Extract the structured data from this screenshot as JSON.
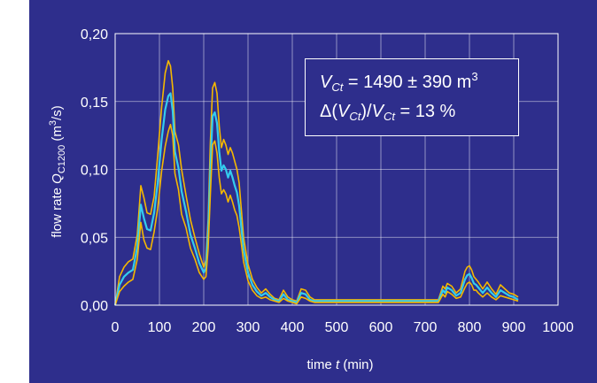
{
  "colors": {
    "background": "#2e2e8c",
    "grid": "#ffffff",
    "upper_bound": "#f5b800",
    "lower_bound": "#f5b800",
    "mean": "#33ccee"
  },
  "chart_data": {
    "type": "line",
    "xlabel": {
      "prefix": "time ",
      "var": "t",
      "unit": " (min)"
    },
    "ylabel": {
      "prefix": "flow rate ",
      "var": "Q",
      "sub": "C1200",
      "unit_pre": " (m",
      "unit_sup": "3",
      "unit_post": "/s)"
    },
    "xlim": [
      0,
      1000
    ],
    "ylim": [
      0,
      0.2
    ],
    "x_ticks": [
      "0",
      "100",
      "200",
      "300",
      "400",
      "500",
      "600",
      "700",
      "800",
      "900",
      "1000"
    ],
    "y_ticks": [
      "0,00",
      "0,05",
      "0,10",
      "0,15",
      "0,20"
    ],
    "grid": true,
    "annotation": {
      "line1": {
        "var": "V",
        "sub": "Ct",
        "text": " = 1490 ± 390 m",
        "sup": "3"
      },
      "line2": {
        "pre": "Δ(",
        "var1": "V",
        "sub1": "Ct",
        "mid": ")/",
        "var2": "V",
        "sub2": "Ct",
        "post": " = 13 %"
      }
    },
    "series": [
      {
        "role": "upper",
        "x": [
          0,
          10,
          20,
          30,
          40,
          50,
          58,
          65,
          72,
          80,
          88,
          96,
          105,
          113,
          120,
          125,
          130,
          135,
          143,
          150,
          160,
          170,
          180,
          190,
          200,
          205,
          210,
          215,
          220,
          225,
          230,
          235,
          240,
          245,
          250,
          255,
          260,
          265,
          270,
          275,
          280,
          285,
          290,
          300,
          310,
          320,
          330,
          340,
          350,
          360,
          370,
          380,
          390,
          400,
          410,
          420,
          430,
          440,
          450,
          500,
          550,
          600,
          650,
          700,
          720,
          730,
          740,
          745,
          750,
          760,
          770,
          780,
          790,
          795,
          800,
          805,
          810,
          815,
          820,
          830,
          840,
          850,
          860,
          870,
          880,
          890,
          900,
          910
        ],
        "y": [
          0,
          0.021,
          0.028,
          0.032,
          0.034,
          0.052,
          0.088,
          0.079,
          0.068,
          0.067,
          0.08,
          0.11,
          0.146,
          0.171,
          0.18,
          0.176,
          0.16,
          0.128,
          0.118,
          0.1,
          0.081,
          0.063,
          0.05,
          0.038,
          0.028,
          0.033,
          0.063,
          0.12,
          0.16,
          0.164,
          0.156,
          0.132,
          0.116,
          0.122,
          0.118,
          0.111,
          0.116,
          0.112,
          0.106,
          0.1,
          0.09,
          0.07,
          0.05,
          0.03,
          0.019,
          0.013,
          0.009,
          0.012,
          0.008,
          0.005,
          0.004,
          0.011,
          0.006,
          0.004,
          0.003,
          0.012,
          0.011,
          0.006,
          0.004,
          0.004,
          0.004,
          0.004,
          0.004,
          0.004,
          0.004,
          0.004,
          0.014,
          0.012,
          0.016,
          0.014,
          0.009,
          0.012,
          0.025,
          0.028,
          0.029,
          0.026,
          0.021,
          0.019,
          0.017,
          0.012,
          0.017,
          0.012,
          0.008,
          0.015,
          0.012,
          0.009,
          0.008,
          0.006
        ]
      },
      {
        "role": "mean",
        "x": [
          0,
          10,
          20,
          30,
          40,
          50,
          58,
          65,
          72,
          80,
          88,
          96,
          105,
          113,
          120,
          125,
          130,
          135,
          143,
          150,
          160,
          170,
          180,
          190,
          200,
          205,
          210,
          215,
          220,
          225,
          230,
          235,
          240,
          245,
          250,
          255,
          260,
          265,
          270,
          275,
          280,
          285,
          290,
          300,
          310,
          320,
          330,
          340,
          350,
          360,
          370,
          380,
          390,
          400,
          410,
          420,
          430,
          440,
          450,
          500,
          550,
          600,
          650,
          700,
          720,
          730,
          740,
          745,
          750,
          760,
          770,
          780,
          790,
          795,
          800,
          805,
          810,
          815,
          820,
          830,
          840,
          850,
          860,
          870,
          880,
          890,
          900,
          910
        ],
        "y": [
          0,
          0.015,
          0.021,
          0.024,
          0.026,
          0.043,
          0.074,
          0.064,
          0.056,
          0.055,
          0.068,
          0.09,
          0.122,
          0.144,
          0.154,
          0.156,
          0.143,
          0.113,
          0.101,
          0.084,
          0.069,
          0.052,
          0.042,
          0.031,
          0.024,
          0.027,
          0.053,
          0.1,
          0.139,
          0.142,
          0.134,
          0.113,
          0.099,
          0.103,
          0.1,
          0.094,
          0.099,
          0.094,
          0.088,
          0.083,
          0.073,
          0.057,
          0.041,
          0.024,
          0.015,
          0.01,
          0.007,
          0.009,
          0.006,
          0.004,
          0.003,
          0.008,
          0.004,
          0.003,
          0.002,
          0.009,
          0.008,
          0.004,
          0.003,
          0.003,
          0.003,
          0.003,
          0.003,
          0.003,
          0.003,
          0.003,
          0.011,
          0.009,
          0.013,
          0.011,
          0.007,
          0.009,
          0.019,
          0.022,
          0.023,
          0.02,
          0.016,
          0.015,
          0.013,
          0.009,
          0.013,
          0.009,
          0.006,
          0.011,
          0.009,
          0.007,
          0.006,
          0.004
        ]
      },
      {
        "role": "lower",
        "x": [
          0,
          10,
          20,
          30,
          40,
          50,
          58,
          65,
          72,
          80,
          88,
          96,
          105,
          113,
          120,
          125,
          130,
          135,
          143,
          150,
          160,
          170,
          180,
          190,
          200,
          205,
          210,
          215,
          220,
          225,
          230,
          235,
          240,
          245,
          250,
          255,
          260,
          265,
          270,
          275,
          280,
          285,
          290,
          300,
          310,
          320,
          330,
          340,
          350,
          360,
          370,
          380,
          390,
          400,
          410,
          420,
          430,
          440,
          450,
          500,
          550,
          600,
          650,
          700,
          720,
          730,
          740,
          745,
          750,
          760,
          770,
          780,
          790,
          795,
          800,
          805,
          810,
          815,
          820,
          830,
          840,
          850,
          860,
          870,
          880,
          890,
          900,
          910
        ],
        "y": [
          0,
          0.01,
          0.014,
          0.017,
          0.019,
          0.034,
          0.061,
          0.048,
          0.042,
          0.041,
          0.054,
          0.071,
          0.099,
          0.117,
          0.128,
          0.133,
          0.125,
          0.097,
          0.085,
          0.067,
          0.057,
          0.042,
          0.034,
          0.024,
          0.019,
          0.021,
          0.042,
          0.082,
          0.118,
          0.121,
          0.112,
          0.094,
          0.082,
          0.085,
          0.082,
          0.076,
          0.081,
          0.076,
          0.07,
          0.066,
          0.057,
          0.045,
          0.032,
          0.018,
          0.011,
          0.007,
          0.005,
          0.006,
          0.004,
          0.003,
          0.002,
          0.005,
          0.003,
          0.002,
          0.001,
          0.006,
          0.005,
          0.003,
          0.002,
          0.002,
          0.002,
          0.002,
          0.002,
          0.002,
          0.002,
          0.002,
          0.008,
          0.006,
          0.01,
          0.008,
          0.005,
          0.006,
          0.013,
          0.016,
          0.017,
          0.015,
          0.011,
          0.011,
          0.009,
          0.006,
          0.009,
          0.006,
          0.004,
          0.007,
          0.006,
          0.005,
          0.004,
          0.003
        ]
      }
    ]
  }
}
